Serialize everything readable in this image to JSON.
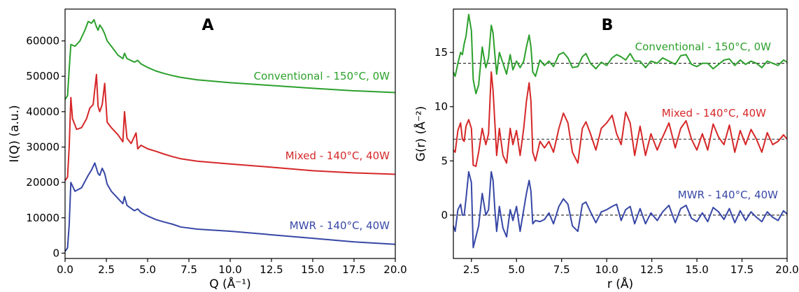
{
  "chart_data": [
    {
      "type": "line",
      "panel_label": "A",
      "xlabel": "Q (Å⁻¹)",
      "ylabel": "I(Q) (a.u.)",
      "xlim": [
        0,
        20
      ],
      "ylim": [
        -1500,
        69000
      ],
      "xticks": [
        0.0,
        2.5,
        5.0,
        7.5,
        10.0,
        12.5,
        15.0,
        17.5,
        20.0
      ],
      "xtick_labels": [
        "0.0",
        "2.5",
        "5.0",
        "7.5",
        "10.0",
        "12.5",
        "15.0",
        "17.5",
        "20.0"
      ],
      "yticks": [
        0,
        10000,
        20000,
        30000,
        40000,
        50000,
        60000
      ],
      "ytick_labels": [
        "0",
        "10000",
        "20000",
        "30000",
        "40000",
        "50000",
        "60000"
      ],
      "grid": false,
      "series": [
        {
          "name": "Conventional - 150°C, 0W",
          "color": "#2ca02c",
          "x": [
            0,
            0.15,
            0.25,
            0.35,
            0.6,
            0.9,
            1.2,
            1.4,
            1.6,
            1.75,
            1.9,
            2.0,
            2.1,
            2.25,
            2.4,
            2.55,
            2.8,
            3.2,
            3.5,
            3.6,
            3.75,
            4.2,
            4.4,
            4.6,
            5.0,
            5.5,
            6.0,
            6.5,
            7.0,
            8.0,
            10.0,
            12.5,
            15.0,
            17.5,
            20.0
          ],
          "y": [
            43500,
            44500,
            52000,
            59000,
            58500,
            60000,
            63000,
            65500,
            65000,
            66000,
            64000,
            63000,
            64500,
            63500,
            62000,
            60000,
            58500,
            56000,
            55000,
            56500,
            55000,
            54000,
            54500,
            53500,
            52500,
            51500,
            50800,
            50200,
            49700,
            49000,
            48200,
            47400,
            46600,
            45900,
            45400
          ]
        },
        {
          "name": "Mixed - 140°C, 40W",
          "color": "#d62728",
          "x": [
            0,
            0.15,
            0.25,
            0.35,
            0.45,
            0.7,
            1.0,
            1.3,
            1.5,
            1.7,
            1.9,
            2.0,
            2.1,
            2.25,
            2.4,
            2.55,
            2.8,
            3.2,
            3.5,
            3.6,
            3.75,
            4.0,
            4.3,
            4.4,
            4.6,
            5.0,
            5.5,
            6.0,
            6.5,
            7.0,
            8.0,
            10.0,
            12.5,
            15.0,
            17.5,
            20.0
          ],
          "y": [
            20500,
            21500,
            30000,
            44000,
            38000,
            35000,
            35500,
            38000,
            41000,
            42000,
            50500,
            41500,
            40000,
            42000,
            48000,
            37000,
            35500,
            33500,
            31500,
            40000,
            32500,
            31000,
            34000,
            29500,
            30500,
            29500,
            28800,
            28000,
            27300,
            26700,
            26000,
            25200,
            24300,
            23300,
            22700,
            22300
          ]
        },
        {
          "name": "MWR - 140°C, 40W",
          "color": "#3747a6",
          "x": [
            0,
            0.15,
            0.25,
            0.35,
            0.6,
            1.0,
            1.4,
            1.6,
            1.8,
            1.9,
            2.0,
            2.1,
            2.25,
            2.4,
            2.55,
            2.8,
            3.2,
            3.5,
            3.6,
            3.75,
            4.2,
            4.4,
            4.6,
            5.0,
            5.5,
            6.0,
            6.5,
            7.0,
            8.0,
            10.0,
            12.5,
            15.0,
            17.5,
            20.0
          ],
          "y": [
            500,
            1500,
            8000,
            20000,
            17500,
            18500,
            22000,
            23500,
            25500,
            24000,
            22500,
            22000,
            24000,
            22500,
            19500,
            17500,
            15500,
            14000,
            16000,
            13500,
            12000,
            12500,
            11500,
            10500,
            9500,
            8800,
            8200,
            7400,
            6800,
            6200,
            5200,
            4200,
            3200,
            2500
          ]
        }
      ]
    },
    {
      "type": "line",
      "panel_label": "B",
      "xlabel": "r (Å)",
      "ylabel": "G(r) (Å⁻²)",
      "xlim": [
        1.5,
        20
      ],
      "ylim": [
        -4,
        19
      ],
      "xticks": [
        2.5,
        5.0,
        7.5,
        10.0,
        12.5,
        15.0,
        17.5,
        20.0
      ],
      "xtick_labels": [
        "2.5",
        "5.0",
        "7.5",
        "10.0",
        "12.5",
        "15.0",
        "17.5",
        "20.0"
      ],
      "yticks": [
        0,
        5,
        10,
        15
      ],
      "ytick_labels": [
        "0",
        "5",
        "10",
        "15"
      ],
      "grid": false,
      "baselines": [
        14,
        7,
        0
      ],
      "series": [
        {
          "name": "Conventional - 150°C, 0W",
          "color": "#2ca02c",
          "x": [
            1.5,
            1.6,
            1.75,
            1.9,
            2.0,
            2.1,
            2.2,
            2.35,
            2.5,
            2.6,
            2.75,
            2.9,
            3.1,
            3.3,
            3.45,
            3.6,
            3.7,
            3.8,
            3.9,
            4.05,
            4.25,
            4.45,
            4.65,
            4.8,
            5.0,
            5.2,
            5.4,
            5.55,
            5.7,
            5.8,
            5.9,
            6.05,
            6.3,
            6.55,
            6.8,
            7.05,
            7.35,
            7.6,
            7.85,
            8.1,
            8.4,
            8.65,
            8.85,
            9.1,
            9.4,
            9.7,
            10.0,
            10.3,
            10.55,
            10.8,
            11.05,
            11.3,
            11.55,
            11.85,
            12.15,
            12.45,
            12.8,
            13.1,
            13.45,
            13.8,
            14.1,
            14.4,
            14.7,
            15.0,
            15.3,
            15.6,
            15.9,
            16.2,
            16.5,
            16.8,
            17.1,
            17.4,
            17.7,
            18.0,
            18.3,
            18.6,
            18.9,
            19.2,
            19.5,
            19.8,
            20.0
          ],
          "y": [
            13.2,
            12.8,
            14.0,
            15.0,
            14.8,
            15.8,
            16.5,
            18.5,
            17.0,
            12.5,
            11.2,
            12.0,
            15.5,
            13.6,
            14.5,
            17.5,
            16.8,
            14.8,
            13.0,
            15.0,
            14.0,
            13.0,
            14.8,
            13.4,
            14.2,
            13.6,
            14.2,
            15.5,
            16.6,
            15.5,
            13.2,
            12.8,
            14.3,
            13.8,
            14.2,
            13.7,
            14.8,
            15.0,
            14.5,
            13.6,
            13.7,
            14.6,
            14.9,
            14.0,
            13.5,
            14.1,
            13.8,
            14.5,
            14.8,
            14.6,
            14.3,
            14.9,
            14.2,
            14.2,
            13.6,
            14.2,
            14.0,
            14.5,
            14.2,
            13.9,
            14.7,
            14.8,
            13.9,
            13.7,
            14.0,
            14.0,
            13.5,
            13.9,
            14.3,
            14.4,
            13.8,
            14.3,
            13.9,
            14.2,
            14.0,
            13.6,
            14.2,
            14.0,
            13.8,
            14.3,
            14.1
          ]
        },
        {
          "name": "Mixed - 140°C, 40W",
          "color": "#d62728",
          "x": [
            1.5,
            1.6,
            1.75,
            1.9,
            2.0,
            2.1,
            2.2,
            2.35,
            2.5,
            2.6,
            2.75,
            2.9,
            3.1,
            3.3,
            3.45,
            3.6,
            3.7,
            3.8,
            3.9,
            4.05,
            4.25,
            4.45,
            4.65,
            4.8,
            5.0,
            5.2,
            5.4,
            5.55,
            5.7,
            5.8,
            5.9,
            6.05,
            6.3,
            6.55,
            6.8,
            7.05,
            7.35,
            7.6,
            7.85,
            8.1,
            8.4,
            8.65,
            8.85,
            9.1,
            9.4,
            9.7,
            10.0,
            10.3,
            10.55,
            10.8,
            11.05,
            11.3,
            11.55,
            11.85,
            12.15,
            12.45,
            12.8,
            13.1,
            13.45,
            13.8,
            14.1,
            14.4,
            14.7,
            15.0,
            15.3,
            15.6,
            15.9,
            16.2,
            16.5,
            16.8,
            17.1,
            17.4,
            17.7,
            18.0,
            18.3,
            18.6,
            18.9,
            19.2,
            19.5,
            19.8,
            20.0
          ],
          "y": [
            6.0,
            5.8,
            7.8,
            8.5,
            7.0,
            6.8,
            8.2,
            8.8,
            8.0,
            4.6,
            4.5,
            5.8,
            8.0,
            6.5,
            7.5,
            13.2,
            11.5,
            8.5,
            5.5,
            8.0,
            5.5,
            4.8,
            8.0,
            6.5,
            7.8,
            5.5,
            8.0,
            10.5,
            12.2,
            10.5,
            5.8,
            5.0,
            6.8,
            6.2,
            6.8,
            5.8,
            8.0,
            9.4,
            8.5,
            5.8,
            4.8,
            8.0,
            8.6,
            7.5,
            6.0,
            8.0,
            8.5,
            9.2,
            7.5,
            6.5,
            9.5,
            8.5,
            5.5,
            8.2,
            5.5,
            7.5,
            6.0,
            7.2,
            8.5,
            6.2,
            8.0,
            8.7,
            7.0,
            6.0,
            7.5,
            6.0,
            8.4,
            7.2,
            6.5,
            8.3,
            5.8,
            7.8,
            6.5,
            7.9,
            7.0,
            5.8,
            7.6,
            6.5,
            6.8,
            7.4,
            7.0
          ]
        },
        {
          "name": "MWR - 140°C, 40W",
          "color": "#3747a6",
          "x": [
            1.5,
            1.6,
            1.75,
            1.9,
            2.0,
            2.1,
            2.2,
            2.35,
            2.5,
            2.6,
            2.75,
            2.9,
            3.1,
            3.3,
            3.45,
            3.6,
            3.7,
            3.8,
            3.9,
            4.05,
            4.25,
            4.45,
            4.65,
            4.8,
            5.0,
            5.2,
            5.4,
            5.55,
            5.7,
            5.8,
            5.9,
            6.05,
            6.3,
            6.55,
            6.8,
            7.05,
            7.35,
            7.6,
            7.85,
            8.1,
            8.4,
            8.65,
            8.85,
            9.1,
            9.4,
            9.7,
            10.0,
            10.3,
            10.55,
            10.8,
            11.05,
            11.3,
            11.55,
            11.85,
            12.15,
            12.45,
            12.8,
            13.1,
            13.45,
            13.8,
            14.1,
            14.4,
            14.7,
            15.0,
            15.3,
            15.6,
            15.9,
            16.2,
            16.5,
            16.8,
            17.1,
            17.4,
            17.7,
            18.0,
            18.3,
            18.6,
            18.9,
            19.2,
            19.5,
            19.8,
            20.0
          ],
          "y": [
            -1.0,
            -1.5,
            0.5,
            1.0,
            0.0,
            0.0,
            1.5,
            4.0,
            3.0,
            -3.0,
            -2.0,
            -1.0,
            2.0,
            0.0,
            0.5,
            4.0,
            3.2,
            0.5,
            -1.5,
            0.8,
            -1.2,
            -2.0,
            0.5,
            -0.5,
            0.8,
            -1.5,
            0.5,
            2.0,
            3.2,
            2.2,
            -0.8,
            -0.5,
            -0.6,
            -0.4,
            0.2,
            -0.8,
            0.8,
            1.5,
            1.0,
            -1.0,
            -1.5,
            1.0,
            1.2,
            0.3,
            -0.7,
            0.3,
            0.5,
            0.8,
            1.0,
            -0.5,
            0.5,
            0.8,
            -0.8,
            0.6,
            -0.8,
            0.2,
            -0.5,
            0.3,
            0.9,
            -0.7,
            0.6,
            0.9,
            -0.3,
            -0.6,
            0.2,
            -0.6,
            0.7,
            0.3,
            -0.4,
            0.6,
            -0.7,
            0.4,
            -0.5,
            0.3,
            -0.2,
            -0.6,
            0.3,
            -0.2,
            -0.5,
            0.4,
            0.1
          ]
        }
      ]
    }
  ]
}
